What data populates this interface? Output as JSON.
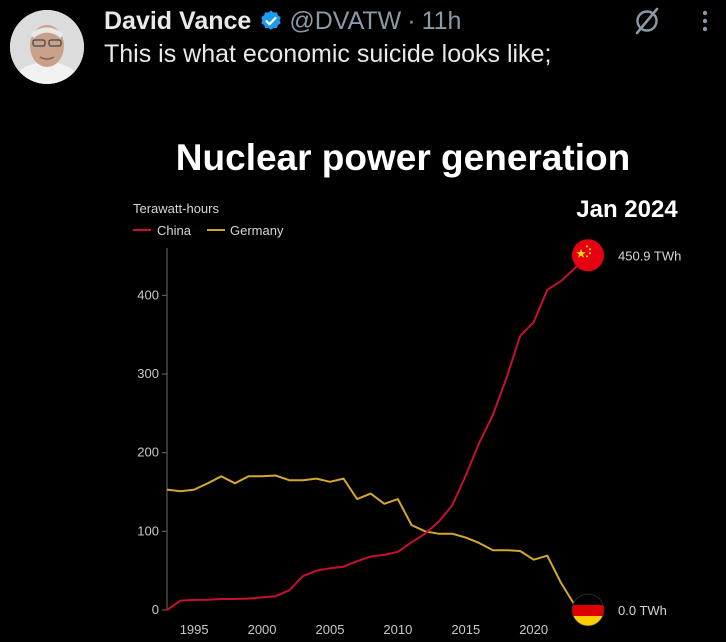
{
  "post": {
    "display_name": "David Vance",
    "handle": "@DVATW",
    "separator": "·",
    "time": "11h",
    "text": "This is what economic suicide looks like;",
    "avatar_icon": "avatar-photo",
    "verified_icon": "verified-badge-icon",
    "verified_color": "#1d9bf0",
    "grok_icon": "grok-icon",
    "more_icon": "more-dots-icon"
  },
  "chart_data": {
    "type": "line",
    "title": "Nuclear power generation",
    "ylabel": "Terawatt-hours",
    "date_label": "Jan 2024",
    "xlim": [
      1993,
      2024
    ],
    "ylim": [
      0,
      450
    ],
    "x_ticks": [
      1995,
      2000,
      2005,
      2010,
      2015,
      2020
    ],
    "y_ticks": [
      0,
      100,
      200,
      300,
      400
    ],
    "legend_position": "top-left",
    "grid": false,
    "series": [
      {
        "name": "China",
        "color": "#c8102e",
        "end_label": "450.9 TWh",
        "end_icon": "china-flag-icon",
        "points": [
          [
            1993,
            0
          ],
          [
            1994,
            12
          ],
          [
            1995,
            12.8
          ],
          [
            1996,
            13
          ],
          [
            1997,
            14
          ],
          [
            1998,
            14
          ],
          [
            1999,
            14.5
          ],
          [
            2000,
            16
          ],
          [
            2001,
            17.5
          ],
          [
            2002,
            25
          ],
          [
            2003,
            43
          ],
          [
            2004,
            50
          ],
          [
            2005,
            53
          ],
          [
            2006,
            55
          ],
          [
            2007,
            62
          ],
          [
            2008,
            68
          ],
          [
            2009,
            70
          ],
          [
            2010,
            74
          ],
          [
            2011,
            86
          ],
          [
            2012,
            97
          ],
          [
            2013,
            112
          ],
          [
            2014,
            133
          ],
          [
            2015,
            171
          ],
          [
            2016,
            213
          ],
          [
            2017,
            248
          ],
          [
            2018,
            295
          ],
          [
            2019,
            348
          ],
          [
            2020,
            366
          ],
          [
            2021,
            407
          ],
          [
            2022,
            418
          ],
          [
            2023,
            434
          ],
          [
            2024,
            450.9
          ]
        ]
      },
      {
        "name": "Germany",
        "color": "#d4a72c",
        "end_label": "0.0 TWh",
        "end_icon": "germany-flag-icon",
        "points": [
          [
            1993,
            153
          ],
          [
            1994,
            151
          ],
          [
            1995,
            153
          ],
          [
            1996,
            161
          ],
          [
            1997,
            170
          ],
          [
            1998,
            161
          ],
          [
            1999,
            170
          ],
          [
            2000,
            170
          ],
          [
            2001,
            171
          ],
          [
            2002,
            165
          ],
          [
            2003,
            165
          ],
          [
            2004,
            167
          ],
          [
            2005,
            163
          ],
          [
            2006,
            167
          ],
          [
            2007,
            141
          ],
          [
            2008,
            148
          ],
          [
            2009,
            135
          ],
          [
            2010,
            141
          ],
          [
            2011,
            108
          ],
          [
            2012,
            100
          ],
          [
            2013,
            97
          ],
          [
            2014,
            97
          ],
          [
            2015,
            92
          ],
          [
            2016,
            85
          ],
          [
            2017,
            76
          ],
          [
            2018,
            76
          ],
          [
            2019,
            75
          ],
          [
            2020,
            64
          ],
          [
            2021,
            69
          ],
          [
            2022,
            35
          ],
          [
            2023,
            7
          ],
          [
            2024,
            0
          ]
        ]
      }
    ]
  }
}
